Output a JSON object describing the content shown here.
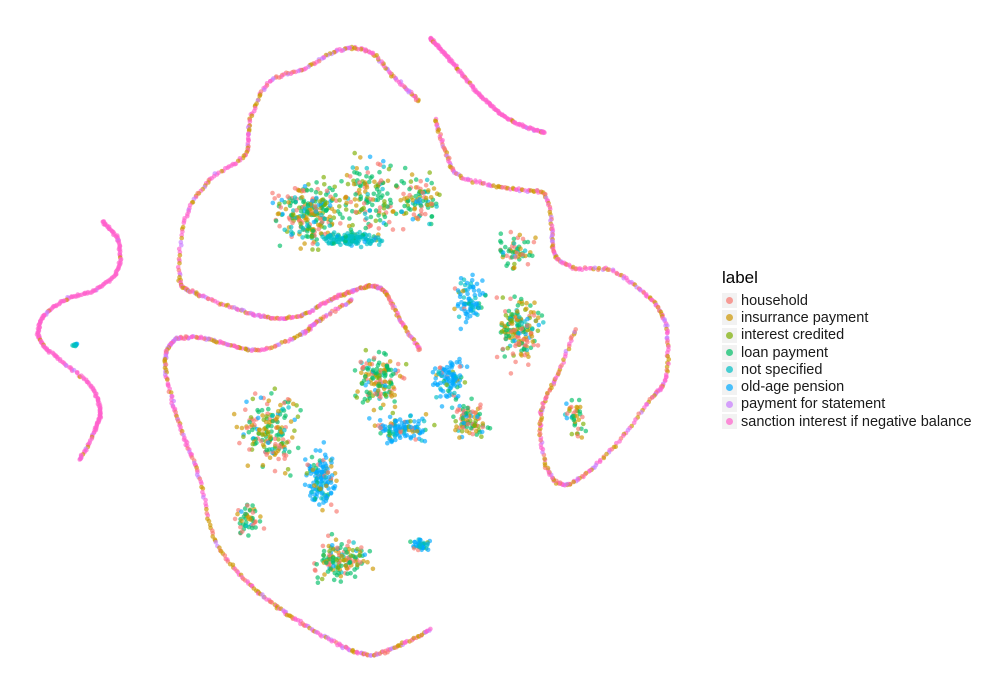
{
  "chart_data": {
    "type": "scatter",
    "title": "",
    "xlabel": "",
    "ylabel": "",
    "axes_visible": false,
    "grid": false,
    "legend_position": "right",
    "legend_title": "label",
    "series": [
      {
        "name": "household",
        "color": "#F8766D"
      },
      {
        "name": "insurrance payment",
        "color": "#CD9600"
      },
      {
        "name": "interest credited",
        "color": "#7CAE00"
      },
      {
        "name": "loan payment",
        "color": "#00BE67"
      },
      {
        "name": "not specified",
        "color": "#00BFC4"
      },
      {
        "name": "old-age pension",
        "color": "#00A9FF"
      },
      {
        "name": "payment for statement",
        "color": "#C77CFF"
      },
      {
        "name": "sanction interest if negative balance",
        "color": "#FF61CC"
      }
    ]
  }
}
